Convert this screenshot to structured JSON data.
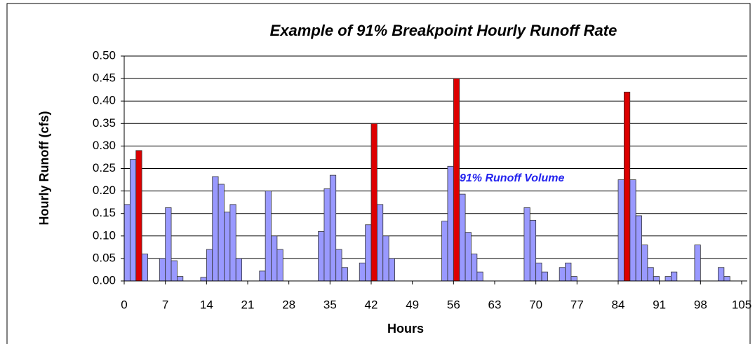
{
  "chart_data": {
    "type": "bar",
    "title": "Example of  91% Breakpoint Hourly Runoff Rate",
    "x_label": "Hours",
    "y_label": "Hourly Runoff (cfs)",
    "annotation": "91% Runoff Volume",
    "xlim": [
      0,
      105
    ],
    "xticks": [
      0,
      7,
      14,
      21,
      28,
      35,
      42,
      49,
      56,
      63,
      70,
      77,
      84,
      91,
      98,
      105
    ],
    "ylim": [
      0,
      0.5
    ],
    "yticks": [
      {
        "value": 0,
        "label": "0.00"
      },
      {
        "value": 0.05,
        "label": "0.05"
      },
      {
        "value": 0.1,
        "label": "0.10"
      },
      {
        "value": 0.15,
        "label": "0.15"
      },
      {
        "value": 0.2,
        "label": "0.20"
      },
      {
        "value": 0.25,
        "label": "0.25"
      },
      {
        "value": 0.3,
        "label": "0.30"
      },
      {
        "value": 0.35,
        "label": "0.35"
      },
      {
        "value": 0.4,
        "label": "0.40"
      },
      {
        "value": 0.45,
        "label": "0.45"
      },
      {
        "value": 0.5,
        "label": "0.50"
      }
    ],
    "grid": true,
    "series": [
      {
        "color": "#9999ff",
        "x": [
          0,
          1,
          3,
          6,
          7,
          8,
          9,
          13,
          14,
          15,
          16,
          17,
          18,
          19,
          23,
          24,
          25,
          26,
          33,
          34,
          35,
          36,
          37,
          40,
          41,
          43,
          44,
          45,
          54,
          55,
          57,
          58,
          59,
          60,
          68,
          69,
          70,
          71,
          74,
          75,
          76,
          84,
          86,
          87,
          88,
          89,
          90,
          92,
          93,
          97,
          101,
          102
        ],
        "values": [
          0.17,
          0.27,
          0.06,
          0.05,
          0.163,
          0.045,
          0.01,
          0.008,
          0.07,
          0.232,
          0.215,
          0.153,
          0.17,
          0.05,
          0.022,
          0.2,
          0.1,
          0.07,
          0.11,
          0.205,
          0.235,
          0.07,
          0.03,
          0.04,
          0.125,
          0.17,
          0.1,
          0.05,
          0.133,
          0.255,
          0.193,
          0.108,
          0.06,
          0.02,
          0.163,
          0.135,
          0.04,
          0.02,
          0.03,
          0.04,
          0.01,
          0.225,
          0.225,
          0.145,
          0.08,
          0.03,
          0.01,
          0.01,
          0.02,
          0.08,
          0.03,
          0.01
        ]
      },
      {
        "color": "#dd0000",
        "x": [
          2,
          42,
          56,
          85
        ],
        "values": [
          0.29,
          0.35,
          0.45,
          0.42
        ]
      }
    ]
  }
}
